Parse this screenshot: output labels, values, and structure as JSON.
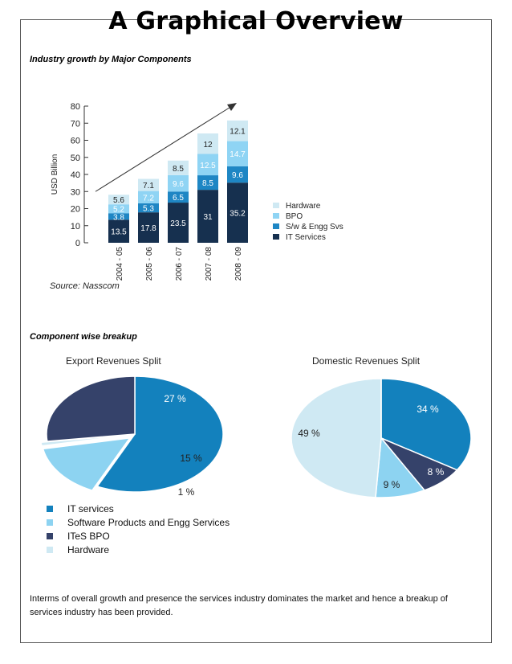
{
  "page_title": "A Graphical Overview",
  "sections": {
    "growth_heading": "Industry growth by Major Components",
    "breakup_heading": "Component wise breakup"
  },
  "source_note": "Source: Nasscom",
  "body_text": "Interms of overall growth and presence the services industry dominates the  market and hence a breakup of services industry has been provided.",
  "colors": {
    "hardware": "#cfe9f3",
    "bpo": "#8fd4f4",
    "sw_engg": "#1e86c4",
    "it_services": "#16304f",
    "pie_it_services": "#1381bd",
    "pie_software": "#8dd3f1",
    "pie_ites_bpo": "#35426a",
    "pie_hardware": "#cfe9f3"
  },
  "pie_legend": [
    "IT services",
    "Software Products and Engg Services",
    "ITeS BPO",
    "Hardware"
  ],
  "chart_data": [
    {
      "type": "bar",
      "stacked": true,
      "title": "",
      "xlabel": "",
      "ylabel": "USD Billion",
      "ylim": [
        0,
        80
      ],
      "yticks": [
        0,
        10,
        20,
        30,
        40,
        50,
        60,
        70,
        80
      ],
      "categories": [
        "2004 - 05",
        "2005 - 06",
        "2006 - 07",
        "2007 - 08",
        "2008 - 09"
      ],
      "series": [
        {
          "name": "IT Services",
          "values": [
            13.5,
            17.8,
            23.5,
            31,
            35.2
          ],
          "color": "#16304f"
        },
        {
          "name": "S/w & Engg Svs",
          "values": [
            3.8,
            5.3,
            6.5,
            8.5,
            9.6
          ],
          "color": "#1e86c4"
        },
        {
          "name": "BPO",
          "values": [
            5.2,
            7.2,
            9.6,
            12.5,
            14.7
          ],
          "color": "#8fd4f4"
        },
        {
          "name": "Hardware",
          "values": [
            5.6,
            7.1,
            8.5,
            12,
            12.1
          ],
          "color": "#cfe9f3"
        }
      ],
      "legend_order": [
        "Hardware",
        "BPO",
        "S/w & Engg Svs",
        "IT Services"
      ],
      "legend_position": "right",
      "annotation": "upward trend arrow"
    },
    {
      "type": "pie",
      "title": "Export Revenues Split",
      "labels": [
        "IT services",
        "Software Products and Engg Services",
        "Hardware",
        "ITeS BPO"
      ],
      "values": [
        57,
        15,
        1,
        27
      ],
      "value_labels": [
        "57 %",
        "15 %",
        "1 %",
        "27 %"
      ],
      "colors": [
        "#1381bd",
        "#8dd3f1",
        "#cfe9f3",
        "#35426a"
      ]
    },
    {
      "type": "pie",
      "title": "Domestic Revenues Split",
      "labels": [
        "IT services",
        "ITeS BPO",
        "Software Products and Engg Services",
        "Hardware"
      ],
      "values": [
        34,
        8,
        9,
        49
      ],
      "value_labels": [
        "34 %",
        "8 %",
        "9 %",
        "49 %"
      ],
      "colors": [
        "#1381bd",
        "#35426a",
        "#8dd3f1",
        "#cfe9f3"
      ]
    }
  ]
}
